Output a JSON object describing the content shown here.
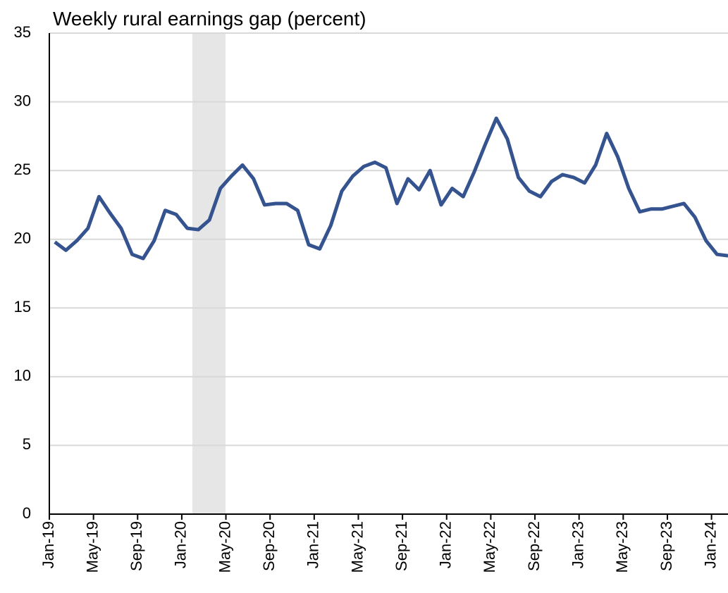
{
  "chart_data": {
    "type": "line",
    "title": "Weekly rural earnings gap (percent)",
    "categories": [
      "Jan-19",
      null,
      null,
      null,
      "May-19",
      null,
      null,
      null,
      "Sep-19",
      null,
      null,
      null,
      "Jan-20",
      null,
      null,
      null,
      "May-20",
      null,
      null,
      null,
      "Sep-20",
      null,
      null,
      null,
      "Jan-21",
      null,
      null,
      null,
      "May-21",
      null,
      null,
      null,
      "Sep-21",
      null,
      null,
      null,
      "Jan-22",
      null,
      null,
      null,
      "May-22",
      null,
      null,
      null,
      "Sep-22",
      null,
      null,
      null,
      "Jan-23",
      null,
      null,
      null,
      "May-23",
      null,
      null,
      null,
      "Sep-23",
      null,
      null,
      null,
      "Jan-24",
      null
    ],
    "series": [
      {
        "color": "#34538f",
        "values": [
          19.8,
          19.2,
          19.9,
          20.8,
          23.1,
          21.9,
          20.8,
          18.9,
          18.6,
          19.9,
          22.1,
          21.8,
          20.8,
          20.7,
          21.4,
          23.7,
          24.6,
          25.4,
          24.4,
          22.5,
          22.6,
          22.6,
          22.1,
          19.6,
          19.3,
          21.0,
          23.5,
          24.6,
          25.3,
          25.6,
          25.2,
          22.6,
          24.4,
          23.6,
          25.0,
          22.5,
          23.7,
          23.1,
          24.9,
          26.9,
          28.8,
          27.3,
          24.5,
          23.5,
          23.1,
          24.2,
          24.7,
          24.5,
          24.1,
          25.4,
          27.7,
          26.0,
          23.7,
          22.0,
          22.2,
          22.2,
          22.4,
          22.6,
          21.6,
          19.9,
          18.9,
          18.8
        ]
      }
    ],
    "ylim": [
      0,
      35
    ],
    "yticks": [
      0,
      5,
      10,
      15,
      20,
      25,
      30,
      35
    ],
    "grid": true
  }
}
